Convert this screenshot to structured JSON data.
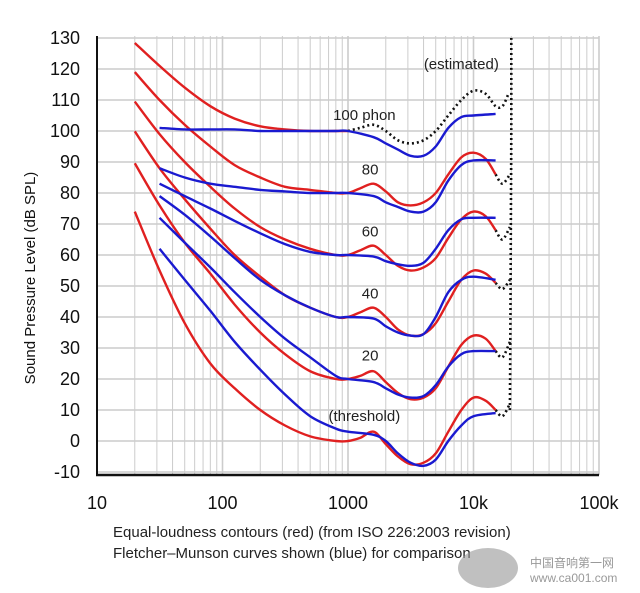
{
  "chart_data": {
    "type": "line",
    "title": "",
    "xlabel": "",
    "ylabel": "Sound Pressure Level (dB SPL)",
    "x_scale": "log",
    "xlim": [
      10,
      100000
    ],
    "ylim": [
      -10,
      130
    ],
    "grid": true,
    "x_ticks": [
      {
        "v": 10,
        "label": "10"
      },
      {
        "v": 100,
        "label": "100"
      },
      {
        "v": 1000,
        "label": "1000"
      },
      {
        "v": 10000,
        "label": "10k"
      },
      {
        "v": 100000,
        "label": "100k"
      }
    ],
    "y_ticks": [
      130,
      120,
      110,
      100,
      90,
      80,
      70,
      60,
      50,
      40,
      30,
      20,
      10,
      0,
      -10
    ],
    "colors": {
      "iso": "#e02020",
      "fletcher_munson": "#1a1ad0",
      "estimated": "#111111",
      "grid": "#cccccc"
    },
    "red_series": [
      {
        "x": [
          20,
          31.5,
          50,
          80,
          125,
          200,
          315,
          500,
          800,
          1000,
          1250,
          1600,
          2000,
          2500,
          3150,
          4000,
          5000,
          6300,
          8000,
          10000,
          12500,
          15000
        ],
        "y": [
          74,
          55,
          38,
          25,
          17,
          10,
          5,
          1.5,
          0,
          0,
          1,
          3,
          -1,
          -5,
          -7.5,
          -7,
          -4,
          3,
          10,
          14,
          13,
          10
        ]
      },
      {
        "x": [
          20,
          31.5,
          50,
          80,
          125,
          200,
          315,
          500,
          800,
          1000,
          1250,
          1600,
          2000,
          2500,
          3150,
          4000,
          5000,
          6300,
          8000,
          10000,
          12500,
          15000
        ],
        "y": [
          89.6,
          76,
          64,
          54,
          44,
          35,
          28,
          22.5,
          20,
          20,
          21,
          22.5,
          19,
          15.5,
          13.5,
          14,
          17,
          24,
          31,
          34,
          33,
          29
        ]
      },
      {
        "x": [
          20,
          31.5,
          50,
          80,
          125,
          200,
          315,
          500,
          800,
          1000,
          1250,
          1600,
          2000,
          2500,
          3150,
          4000,
          5000,
          6300,
          8000,
          10000,
          12500,
          15000
        ],
        "y": [
          99.9,
          88,
          78,
          68.5,
          60,
          53,
          47,
          43,
          40,
          40,
          41.5,
          43,
          40,
          36,
          34,
          34.5,
          38,
          45,
          52,
          55,
          54,
          51
        ]
      },
      {
        "x": [
          20,
          31.5,
          50,
          80,
          125,
          200,
          315,
          500,
          800,
          1000,
          1250,
          1600,
          2000,
          2500,
          3150,
          4000,
          5000,
          6300,
          8000,
          10000,
          12500,
          15000
        ],
        "y": [
          109.5,
          99,
          90,
          82,
          75,
          69,
          65,
          62,
          60,
          60,
          61.5,
          63,
          60,
          56.5,
          55,
          56,
          59,
          65.5,
          71.5,
          74,
          72.5,
          68
        ]
      },
      {
        "x": [
          20,
          31.5,
          50,
          80,
          125,
          200,
          315,
          500,
          800,
          1000,
          1250,
          1600,
          2000,
          2500,
          3150,
          4000,
          5000,
          6300,
          8000,
          10000,
          12500,
          15000
        ],
        "y": [
          119,
          110,
          102,
          95,
          89,
          85,
          82,
          81,
          80,
          80,
          81.5,
          83,
          80.5,
          77,
          76,
          77,
          80,
          86,
          91.5,
          93,
          91,
          86
        ]
      },
      {
        "x": [
          20,
          31.5,
          50,
          80,
          125,
          200,
          315,
          500,
          800,
          1000
        ],
        "y": [
          128.4,
          121,
          114,
          108,
          104,
          101.5,
          100.5,
          100,
          100,
          100
        ]
      }
    ],
    "blue_series": [
      {
        "x": [
          31.5,
          50,
          80,
          125,
          200,
          315,
          500,
          800,
          1000,
          1600,
          2000,
          2500,
          3150,
          4000,
          5000,
          6300,
          8000,
          10000,
          15000
        ],
        "y": [
          62,
          52,
          42,
          32,
          23,
          15,
          8,
          4,
          3,
          2,
          0,
          -4,
          -7,
          -8,
          -6,
          0,
          5,
          8,
          9
        ]
      },
      {
        "x": [
          31.5,
          50,
          80,
          125,
          200,
          315,
          500,
          800,
          1000,
          1600,
          2000,
          2500,
          3150,
          4000,
          5000,
          6300,
          8000,
          10000,
          15000
        ],
        "y": [
          72,
          64,
          56,
          48,
          40,
          33,
          27,
          21,
          20,
          19,
          17,
          15,
          14,
          14.5,
          18,
          24,
          28,
          29,
          29
        ]
      },
      {
        "x": [
          31.5,
          50,
          80,
          125,
          200,
          315,
          500,
          800,
          1000,
          1600,
          2000,
          2500,
          3150,
          4000,
          5000,
          6300,
          8000,
          10000,
          15000
        ],
        "y": [
          79,
          73,
          66,
          59,
          52,
          47,
          43,
          40,
          40,
          39.5,
          37,
          35,
          34,
          34.5,
          40,
          48,
          52,
          53,
          52
        ]
      },
      {
        "x": [
          31.5,
          50,
          80,
          125,
          200,
          315,
          500,
          800,
          1000,
          1600,
          2000,
          2500,
          3150,
          4000,
          5000,
          6300,
          8000,
          10000,
          15000
        ],
        "y": [
          83,
          79,
          75,
          71,
          67,
          63.5,
          61,
          60,
          60,
          59.5,
          58,
          57,
          56.5,
          57.5,
          62,
          68,
          71.5,
          72,
          72
        ]
      },
      {
        "x": [
          31.5,
          50,
          80,
          125,
          200,
          315,
          500,
          800,
          1000,
          1600,
          2000,
          2500,
          3150,
          4000,
          5000,
          6300,
          8000,
          10000,
          15000
        ],
        "y": [
          88,
          85,
          83,
          82,
          81,
          80.5,
          80,
          80,
          80,
          79,
          77,
          75.5,
          74,
          74,
          77,
          84,
          89,
          90.5,
          90.5
        ]
      },
      {
        "x": [
          31.5,
          50,
          80,
          125,
          200,
          315,
          500,
          800,
          1000,
          1600,
          2000,
          2500,
          3150,
          4000,
          5000,
          6300,
          8000,
          10000,
          15000
        ],
        "y": [
          101,
          100.5,
          100.5,
          100.5,
          100,
          100,
          100,
          100,
          100,
          98,
          96,
          94,
          92,
          92,
          95,
          101,
          104.5,
          105,
          105.5
        ]
      }
    ],
    "estimated_series": [
      {
        "x": [
          1000,
          1250,
          1600,
          2000,
          2500,
          3150,
          4000,
          5000,
          6300,
          8000,
          10000,
          12500,
          15000,
          17000,
          19000
        ],
        "y": [
          100,
          101,
          102,
          100,
          97,
          96,
          97,
          100,
          105,
          110,
          113,
          112,
          108,
          108,
          112
        ]
      },
      {
        "x": [
          19500,
          19700,
          19850,
          20000,
          20000
        ],
        "y": [
          10,
          40,
          70,
          100,
          130
        ]
      },
      {
        "x": [
          15000,
          17000,
          19500
        ],
        "y": [
          10,
          8,
          12
        ]
      },
      {
        "x": [
          15000,
          17000,
          19500
        ],
        "y": [
          29,
          27,
          32
        ]
      },
      {
        "x": [
          15000,
          17000,
          19500
        ],
        "y": [
          51,
          49,
          52
        ]
      },
      {
        "x": [
          15000,
          17000,
          19500
        ],
        "y": [
          68,
          65,
          69
        ]
      },
      {
        "x": [
          15000,
          17000,
          19500
        ],
        "y": [
          86,
          83,
          86
        ]
      }
    ],
    "annotations": [
      {
        "text": "(estimated)",
        "x": 8000,
        "y": 120
      },
      {
        "text": "100 phon",
        "x": 1350,
        "y": 103.5
      },
      {
        "text": "80",
        "x": 1500,
        "y": 86
      },
      {
        "text": "60",
        "x": 1500,
        "y": 66
      },
      {
        "text": "40",
        "x": 1500,
        "y": 46
      },
      {
        "text": "20",
        "x": 1500,
        "y": 26
      },
      {
        "text": "(threshold)",
        "x": 1350,
        "y": 6.5
      }
    ]
  },
  "caption": {
    "line1": "Equal-loudness contours (red) (from ISO 226:2003 revision)",
    "line2": "Fletcher–Munson curves shown (blue) for comparison"
  },
  "watermark": {
    "logo": "CA001",
    "site_name": "中国音响第一网",
    "url": "www.ca001.com"
  }
}
